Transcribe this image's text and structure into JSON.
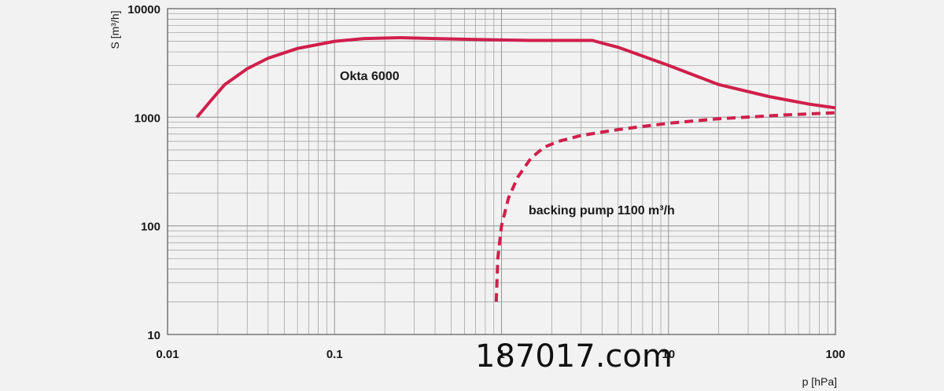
{
  "chart_data": {
    "type": "line",
    "title": "",
    "xlabel": "p [hPa]",
    "ylabel": "S [m³/h]",
    "x_scale": "log",
    "y_scale": "log",
    "xlim": [
      0.01,
      100
    ],
    "ylim": [
      10,
      10000
    ],
    "x_tick_labels": [
      "0.01",
      "0.1",
      "1",
      "10",
      "100"
    ],
    "y_tick_labels": [
      "10",
      "100",
      "1000",
      "10000"
    ],
    "grid": true,
    "series": [
      {
        "name": "Okta 6000",
        "style": "solid",
        "color": "#d01f4c",
        "x": [
          0.015,
          0.018,
          0.022,
          0.03,
          0.04,
          0.06,
          0.1,
          0.15,
          0.25,
          0.4,
          0.7,
          1.0,
          1.5,
          2.2,
          3.5,
          5.0,
          10,
          20,
          40,
          70,
          100
        ],
        "y": [
          1000,
          1400,
          2000,
          2800,
          3500,
          4300,
          5000,
          5300,
          5400,
          5300,
          5200,
          5150,
          5100,
          5100,
          5100,
          4400,
          3000,
          2000,
          1550,
          1320,
          1220
        ]
      },
      {
        "name": "backing pump 1100 m³/h",
        "style": "dashed",
        "color": "#d01f4c",
        "x": [
          0.93,
          0.95,
          1.0,
          1.1,
          1.25,
          1.5,
          1.8,
          2.2,
          3.0,
          5.0,
          10,
          20,
          50,
          100
        ],
        "y": [
          20,
          50,
          100,
          180,
          280,
          420,
          530,
          600,
          680,
          770,
          880,
          970,
          1050,
          1100
        ]
      }
    ],
    "annotations": [
      {
        "text": "Okta 6000"
      },
      {
        "text": "backing pump 1100 m³/h"
      }
    ]
  },
  "overlay": {
    "watermark_text": "187017.com"
  },
  "colors": {
    "background": "#f2f2f2",
    "grid": "#9a9a9a",
    "curve": "#d01f4c",
    "text": "#1a1a1a"
  }
}
